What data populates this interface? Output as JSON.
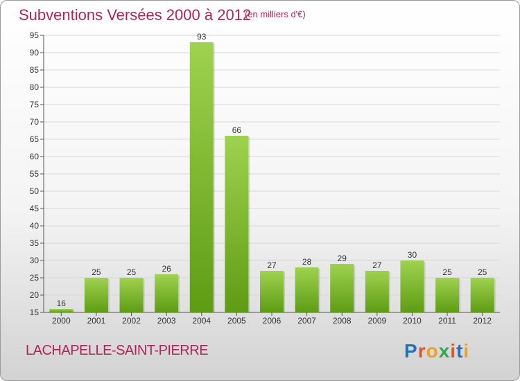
{
  "header": {
    "title": "Subventions Versées 2000 à 2012",
    "unit": "(en milliers d'€)"
  },
  "footer": {
    "commune": "LACHAPELLE-SAINT-PIERRE"
  },
  "logo": {
    "text": "Proxiti",
    "letters": [
      "P",
      "r",
      "o",
      "x",
      "i",
      "t",
      "i"
    ],
    "colors": [
      "#1e73be",
      "#e0562c",
      "#f0a020",
      "#2fa84f",
      "#e0562c",
      "#1e73be",
      "#f0a020"
    ]
  },
  "colors": {
    "bar_top": "#9fd24e",
    "bar_bottom": "#5e9c14",
    "text": "#b0245a",
    "grid": "#d8d8d8"
  },
  "chart_data": {
    "type": "bar",
    "categories": [
      "2000",
      "2001",
      "2002",
      "2003",
      "2004",
      "2005",
      "2006",
      "2007",
      "2008",
      "2009",
      "2010",
      "2011",
      "2012"
    ],
    "values": [
      16,
      25,
      25,
      26,
      93,
      66,
      27,
      28,
      29,
      27,
      30,
      25,
      25
    ],
    "title": "Subventions Versées 2000 à 2012",
    "xlabel": "",
    "ylabel": "",
    "ylim": [
      15,
      95
    ],
    "yticks": [
      15,
      20,
      25,
      30,
      35,
      40,
      45,
      50,
      55,
      60,
      65,
      70,
      75,
      80,
      85,
      90,
      95
    ],
    "grid": true
  }
}
